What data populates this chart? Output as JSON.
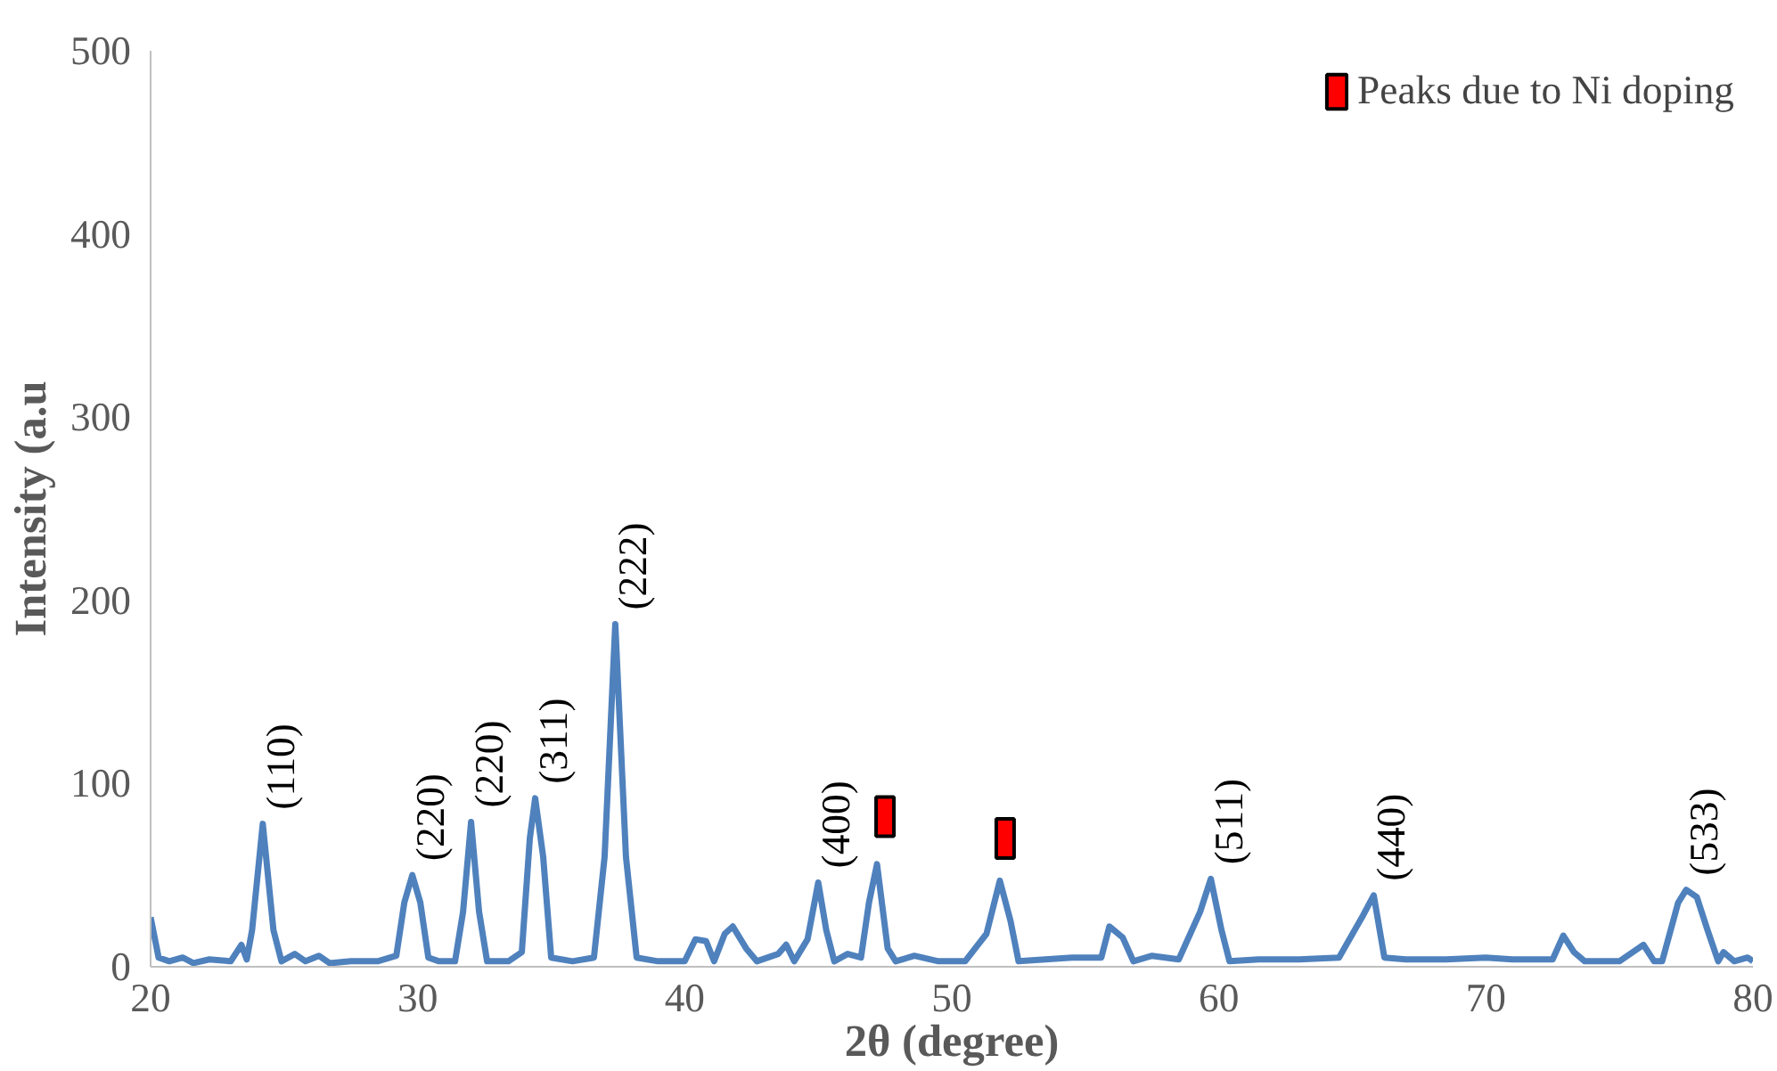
{
  "chart_data": {
    "type": "line",
    "xlabel": "2θ (degree)",
    "ylabel": "Intensity (a.u",
    "xlim": [
      20,
      80
    ],
    "ylim": [
      0,
      500
    ],
    "xticks": [
      20,
      30,
      40,
      50,
      60,
      70,
      80
    ],
    "yticks": [
      0,
      100,
      200,
      300,
      400,
      500
    ],
    "grid": false,
    "legend": "top right",
    "line_style": "solid",
    "series": [
      {
        "color": "#4f81bd",
        "marker": "none",
        "x": [
          20,
          20.3,
          20.7,
          21.2,
          21.6,
          22.2,
          23,
          23.4,
          23.6,
          23.8,
          24.2,
          24.6,
          24.9,
          25.4,
          25.8,
          26.3,
          26.7,
          27.5,
          28.5,
          29.2,
          29.5,
          29.8,
          30.1,
          30.4,
          30.8,
          31.4,
          31.7,
          32.0,
          32.3,
          32.6,
          33.4,
          33.9,
          34.2,
          34.4,
          34.7,
          35.0,
          35.8,
          36.6,
          37.0,
          37.4,
          37.8,
          38.2,
          39,
          40,
          40.4,
          40.8,
          41.1,
          41.5,
          41.8,
          42.3,
          42.7,
          43.5,
          43.8,
          44.1,
          44.6,
          45.0,
          45.3,
          45.6,
          46.1,
          46.6,
          46.9,
          47.2,
          47.6,
          47.9,
          48.6,
          49.5,
          50.5,
          51.3,
          51.8,
          52.2,
          52.5,
          53.5,
          54.5,
          55.6,
          55.9,
          56.4,
          56.8,
          57.5,
          58.5,
          59.3,
          59.7,
          60.1,
          60.4,
          61.5,
          63,
          64.5,
          65.4,
          65.8,
          66.2,
          67,
          68.5,
          70,
          71,
          72.5,
          72.9,
          73.3,
          73.7,
          75,
          75.9,
          76.3,
          76.6,
          77.2,
          77.5,
          77.9,
          78.3,
          78.7,
          78.9,
          79.3,
          79.8,
          80
        ],
        "values": [
          27,
          5,
          3,
          5,
          2,
          4,
          3,
          12,
          4,
          20,
          78,
          20,
          3,
          7,
          3,
          6,
          2,
          3,
          3,
          6,
          35,
          50,
          35,
          5,
          3,
          3,
          30,
          79,
          30,
          3,
          3,
          8,
          70,
          92,
          60,
          5,
          3,
          5,
          60,
          187,
          60,
          5,
          3,
          3,
          15,
          14,
          3,
          18,
          22,
          10,
          3,
          7,
          12,
          3,
          15,
          46,
          20,
          3,
          7,
          5,
          35,
          56,
          10,
          3,
          6,
          3,
          3,
          18,
          47,
          25,
          3,
          4,
          5,
          5,
          22,
          16,
          3,
          6,
          4,
          30,
          48,
          20,
          3,
          4,
          4,
          5,
          28,
          39,
          5,
          4,
          4,
          5,
          4,
          4,
          17,
          8,
          3,
          3,
          12,
          3,
          3,
          35,
          42,
          38,
          20,
          3,
          8,
          3,
          5,
          3
        ]
      },
      {
        "type": "scatter",
        "name": "Peaks due to Ni doping",
        "color": "#ff0000",
        "marker": "square",
        "x": [
          47.5,
          52.0
        ],
        "values": [
          82,
          70
        ]
      }
    ],
    "annotations": [
      {
        "text": "(110)",
        "x": 24.2,
        "y": 78
      },
      {
        "text": "(220)",
        "x": 29.8,
        "y": 50
      },
      {
        "text": "(220)",
        "x": 32.0,
        "y": 79
      },
      {
        "text": "(311)",
        "x": 34.4,
        "y": 92
      },
      {
        "text": "(222)",
        "x": 37.4,
        "y": 187
      },
      {
        "text": "(400)",
        "x": 45.0,
        "y": 46
      },
      {
        "text": "(511)",
        "x": 59.7,
        "y": 48
      },
      {
        "text": "(440)",
        "x": 65.8,
        "y": 39
      },
      {
        "text": "(533)",
        "x": 77.5,
        "y": 42
      }
    ]
  }
}
